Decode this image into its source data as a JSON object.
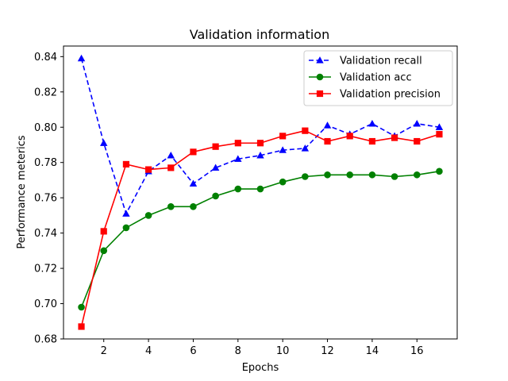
{
  "chart_data": {
    "type": "line",
    "title": "Validation information",
    "xlabel": "Epochs",
    "ylabel": "Performance meterics",
    "x": [
      1,
      2,
      3,
      4,
      5,
      6,
      7,
      8,
      9,
      10,
      11,
      12,
      13,
      14,
      15,
      16,
      17
    ],
    "xlim": [
      0.2,
      17.8
    ],
    "ylim": [
      0.68,
      0.846
    ],
    "xticks": [
      2,
      4,
      6,
      8,
      10,
      12,
      14,
      16
    ],
    "yticks": [
      0.68,
      0.7,
      0.72,
      0.74,
      0.76,
      0.78,
      0.8,
      0.82,
      0.84
    ],
    "xtick_labels": [
      "2",
      "4",
      "6",
      "8",
      "10",
      "12",
      "14",
      "16"
    ],
    "ytick_labels": [
      "0.68",
      "0.70",
      "0.72",
      "0.74",
      "0.76",
      "0.78",
      "0.80",
      "0.82",
      "0.84"
    ],
    "grid": false,
    "legend_position": "top-right",
    "series": [
      {
        "name": "Validation recall",
        "color": "#0000ff",
        "linestyle": "dashed",
        "marker": "triangle",
        "values": [
          0.839,
          0.791,
          0.751,
          0.775,
          0.784,
          0.768,
          0.777,
          0.782,
          0.784,
          0.787,
          0.788,
          0.801,
          0.796,
          0.802,
          0.795,
          0.802,
          0.8
        ]
      },
      {
        "name": "Validation acc",
        "color": "#008000",
        "linestyle": "solid",
        "marker": "circle",
        "values": [
          0.698,
          0.73,
          0.743,
          0.75,
          0.755,
          0.755,
          0.761,
          0.765,
          0.765,
          0.769,
          0.772,
          0.773,
          0.773,
          0.773,
          0.772,
          0.773,
          0.775
        ]
      },
      {
        "name": "Validation precision",
        "color": "#ff0000",
        "linestyle": "solid",
        "marker": "square",
        "values": [
          0.687,
          0.741,
          0.779,
          0.776,
          0.777,
          0.786,
          0.789,
          0.791,
          0.791,
          0.795,
          0.798,
          0.792,
          0.795,
          0.792,
          0.794,
          0.792,
          0.796
        ]
      }
    ]
  }
}
